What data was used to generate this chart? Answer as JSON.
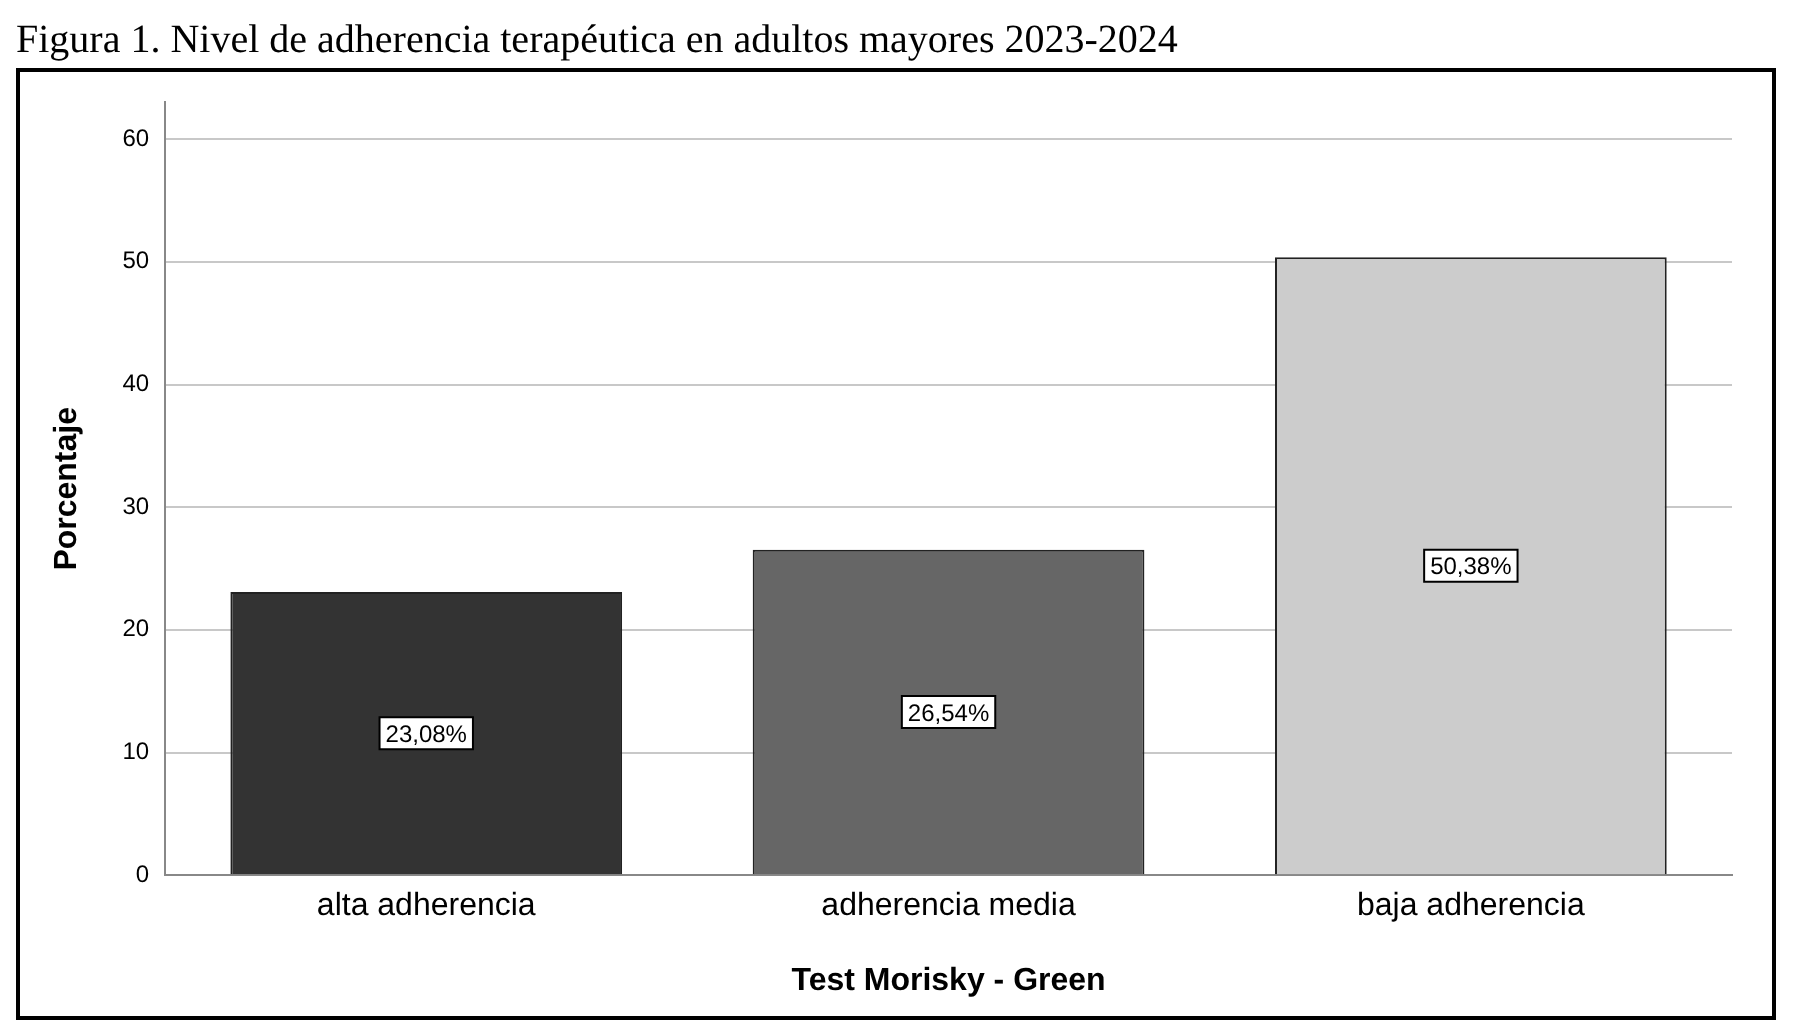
{
  "chart_data": {
    "type": "bar",
    "title": "Figura 1. Nivel de adherencia terapéutica en adultos mayores 2023-2024",
    "xlabel": "Test Morisky - Green",
    "ylabel": "Porcentaje",
    "categories": [
      "alta adherencia",
      "adherencia media",
      "baja adherencia"
    ],
    "values": [
      23.08,
      26.54,
      50.38
    ],
    "colors": [
      "#333333",
      "#666666",
      "#cccccc"
    ],
    "value_labels": [
      "23,08%",
      "26,54%",
      "50,38%"
    ],
    "ylim": [
      0,
      63
    ],
    "yticks": [
      0,
      10,
      20,
      30,
      40,
      50,
      60
    ],
    "grid": "y",
    "legend": false
  }
}
